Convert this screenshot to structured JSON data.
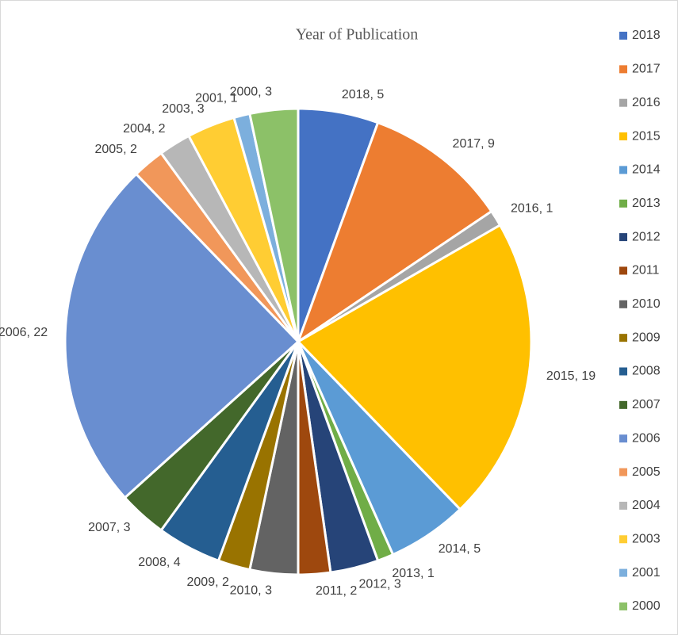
{
  "chart_data": {
    "type": "pie",
    "title": "Year of Publication",
    "categories": [
      "2018",
      "2017",
      "2016",
      "2015",
      "2014",
      "2013",
      "2012",
      "2011",
      "2010",
      "2009",
      "2008",
      "2007",
      "2006",
      "2005",
      "2004",
      "2003",
      "2001",
      "2000"
    ],
    "values": [
      5,
      9,
      1,
      19,
      5,
      1,
      3,
      2,
      3,
      2,
      4,
      3,
      22,
      2,
      2,
      3,
      1,
      3
    ],
    "colors": [
      "#4472c4",
      "#ed7d31",
      "#a5a5a5",
      "#ffc000",
      "#5b9bd5",
      "#70ad47",
      "#264478",
      "#9e480e",
      "#636363",
      "#997300",
      "#255e91",
      "#43682b",
      "#698ed0",
      "#f1975a",
      "#b7b7b7",
      "#ffcd33",
      "#7cafdd",
      "#8cc168"
    ],
    "legend": "right"
  }
}
